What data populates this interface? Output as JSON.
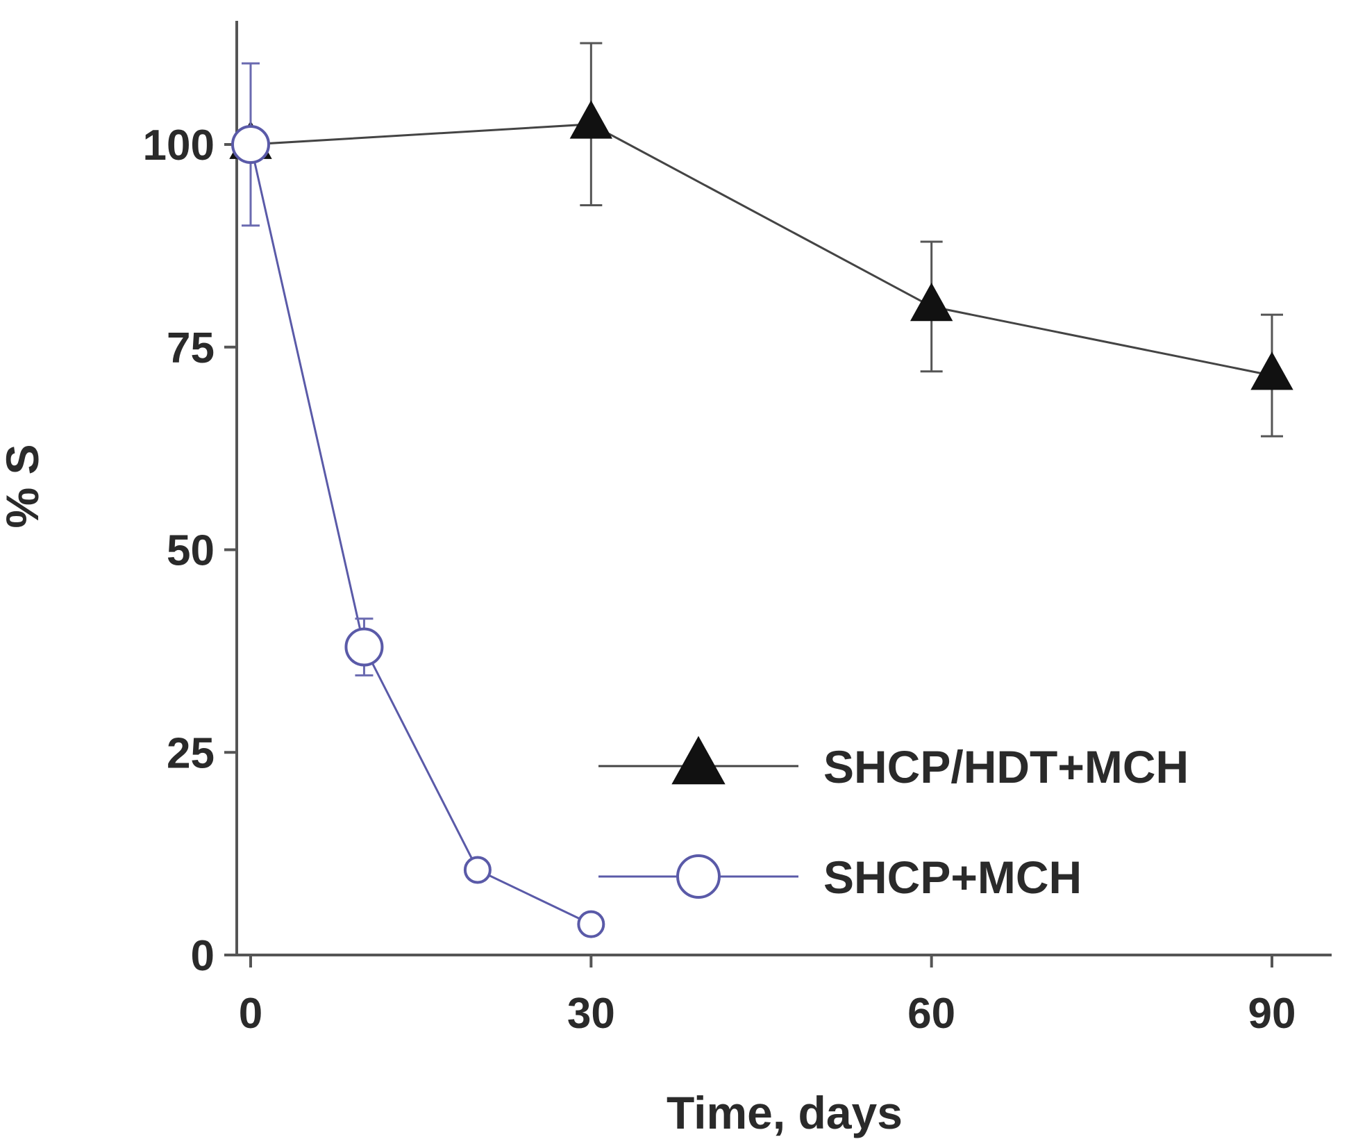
{
  "chart_data": {
    "type": "line",
    "title": "",
    "xlabel": "Time, days",
    "ylabel": "% S",
    "xlim": [
      0,
      94
    ],
    "ylim": [
      0,
      115
    ],
    "x_ticks": [
      0,
      30,
      60,
      90
    ],
    "y_ticks": [
      0,
      25,
      50,
      75,
      100
    ],
    "x_tick_labels": [
      "0",
      "30",
      "60",
      "90"
    ],
    "y_tick_labels": [
      "0",
      "25",
      "50",
      "75",
      "100"
    ],
    "grid": false,
    "legend_position": "bottom-right",
    "series": [
      {
        "name": "SHCP/HDT+MCH",
        "marker": "filled-triangle",
        "color": "#3a3a3a",
        "x": [
          0,
          30,
          60,
          90
        ],
        "y": [
          100,
          102.5,
          80,
          71.5
        ],
        "err": [
          0,
          10,
          8,
          7.5
        ]
      },
      {
        "name": "SHCP+MCH",
        "marker": "open-circle",
        "color": "#5a5aa8",
        "x": [
          0,
          10,
          20,
          30
        ],
        "y": [
          100,
          38,
          10.5,
          3.8
        ],
        "err": [
          10,
          3.5,
          1.2,
          1
        ]
      }
    ]
  }
}
